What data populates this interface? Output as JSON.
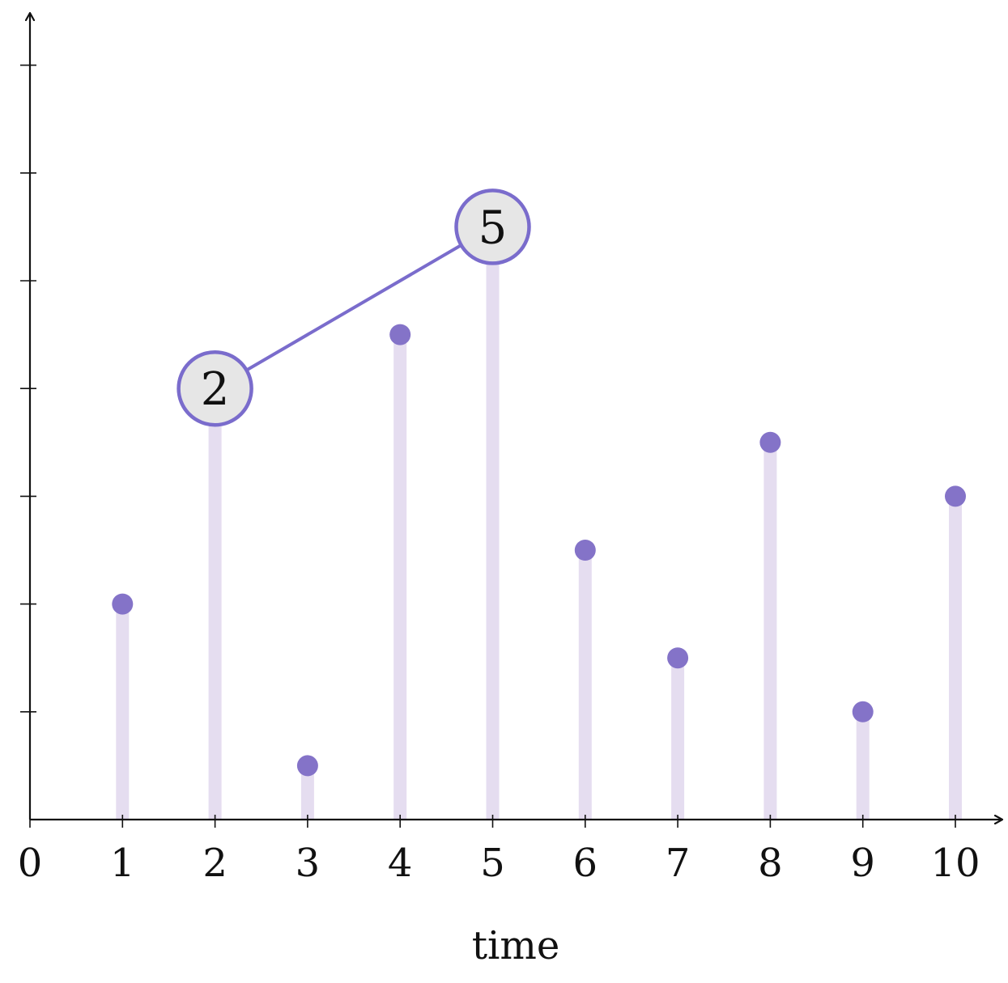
{
  "chart_data": {
    "type": "stem",
    "x": [
      1,
      2,
      3,
      4,
      5,
      6,
      7,
      8,
      9,
      10
    ],
    "values": [
      4,
      8,
      1,
      9,
      11,
      5,
      3,
      7,
      2,
      6
    ],
    "x_tick_labels": [
      "0",
      "1",
      "2",
      "3",
      "4",
      "5",
      "6",
      "7",
      "8",
      "9",
      "10"
    ],
    "xlabel": "time",
    "ylabel": "",
    "xlim": [
      0,
      10.5
    ],
    "ylim": [
      0,
      14.5
    ],
    "y_ticks_labeled": false,
    "grid": false,
    "highlighted_nodes": [
      {
        "x": 2,
        "value": 8,
        "label": "2"
      },
      {
        "x": 5,
        "value": 11,
        "label": "5"
      }
    ],
    "colors": {
      "stem": "#e5ddf0",
      "marker": "#8473c8",
      "node_fill": "#e6e6e6",
      "node_border": "#7a6ccc",
      "axis": "#111111"
    }
  }
}
